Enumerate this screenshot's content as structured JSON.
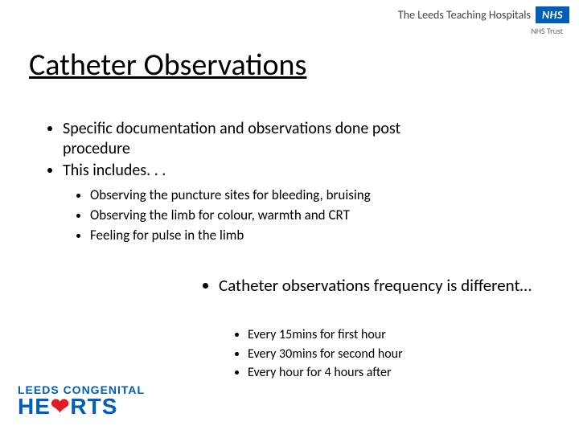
{
  "header": {
    "org_text": "The Leeds Teaching Hospitals",
    "nhs_badge": "NHS",
    "nhs_sub": "NHS Trust",
    "nhs_blue": "#005eb8"
  },
  "title": "Catheter Observations",
  "bullets_level1": [
    "Specific documentation and observations done post procedure",
    "This includes. . ."
  ],
  "bullets_level2": [
    "Observing the puncture sites for bleeding, bruising",
    "Observing the limb for colour, warmth and CRT",
    "Feeling for pulse in the limb"
  ],
  "bullets_level3": [
    "Catheter observations frequency is different…"
  ],
  "bullets_level4": [
    "Every 15mins for first hour",
    "Every 30mins for second hour",
    "Every hour for 4 hours after"
  ],
  "footer_logo": {
    "line1": "LEEDS CONGENITAL",
    "line2_pre": "HE",
    "line2_heart": "❤",
    "line2_post": "RTS",
    "blue": "#005eb8",
    "red": "#e31b23"
  },
  "fonts": {
    "title_size": 38,
    "body_size": 20,
    "sub_size": 17
  },
  "background_color": "#ffffff",
  "text_color": "#000000"
}
